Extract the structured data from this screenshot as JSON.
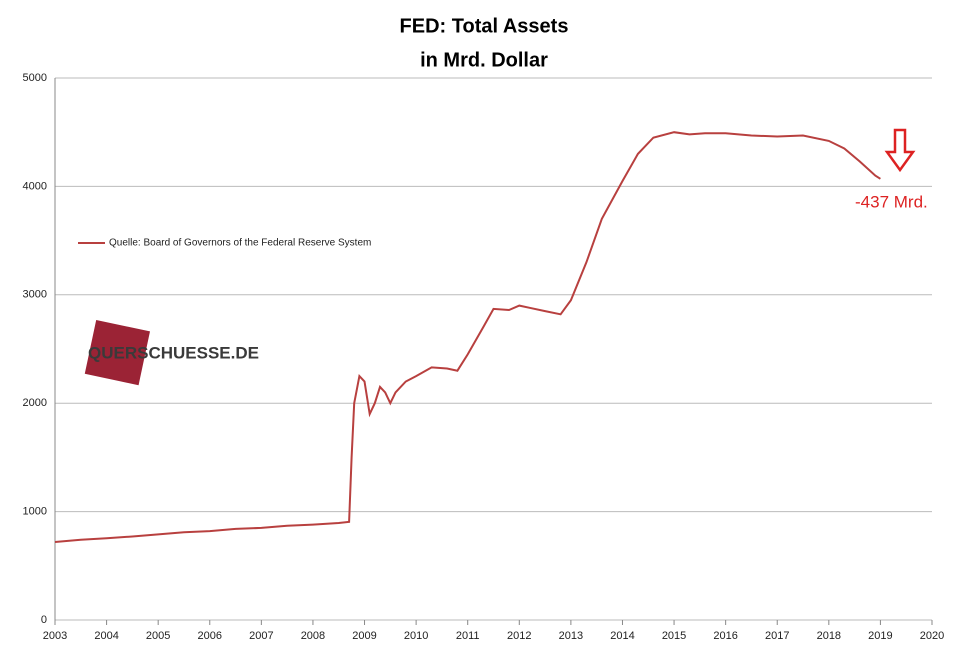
{
  "chart_data": {
    "type": "line",
    "title": "FED: Total Assets",
    "subtitle": "in Mrd. Dollar",
    "x": [
      2003.0,
      2003.5,
      2004.0,
      2004.5,
      2005.0,
      2005.5,
      2006.0,
      2006.5,
      2007.0,
      2007.5,
      2008.0,
      2008.5,
      2008.7,
      2008.75,
      2008.8,
      2008.9,
      2009.0,
      2009.1,
      2009.2,
      2009.3,
      2009.4,
      2009.5,
      2009.6,
      2009.8,
      2010.0,
      2010.3,
      2010.6,
      2010.8,
      2011.0,
      2011.3,
      2011.5,
      2011.8,
      2012.0,
      2012.2,
      2012.5,
      2012.8,
      2013.0,
      2013.3,
      2013.6,
      2014.0,
      2014.3,
      2014.6,
      2015.0,
      2015.3,
      2015.6,
      2016.0,
      2016.5,
      2017.0,
      2017.5,
      2018.0,
      2018.3,
      2018.6,
      2018.9,
      2019.0
    ],
    "series": [
      {
        "name": "Quelle: Board of Governors of the Federal Reserve System",
        "color": "#b8403f",
        "values": [
          720,
          740,
          755,
          770,
          790,
          810,
          820,
          840,
          850,
          870,
          880,
          895,
          905,
          1500,
          2000,
          2250,
          2200,
          1900,
          2000,
          2150,
          2100,
          2000,
          2100,
          2200,
          2250,
          2330,
          2320,
          2300,
          2450,
          2700,
          2870,
          2860,
          2900,
          2880,
          2850,
          2820,
          2950,
          3300,
          3700,
          4050,
          4300,
          4450,
          4500,
          4480,
          4490,
          4490,
          4470,
          4460,
          4470,
          4420,
          4350,
          4230,
          4100,
          4070
        ]
      }
    ],
    "xlim": [
      2003,
      2020
    ],
    "xticks": [
      2003,
      2004,
      2005,
      2006,
      2007,
      2008,
      2009,
      2010,
      2011,
      2012,
      2013,
      2014,
      2015,
      2016,
      2017,
      2018,
      2019,
      2020
    ],
    "ylim": [
      0,
      5000
    ],
    "yticks": [
      0,
      1000,
      2000,
      3000,
      4000,
      5000
    ],
    "grid": true,
    "annotations": [
      "-437 Mrd.",
      "QUERSCHUESSE.DE"
    ]
  }
}
